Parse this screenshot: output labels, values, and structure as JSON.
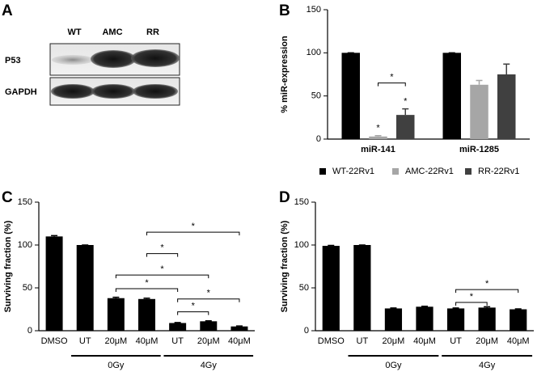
{
  "panel_a": {
    "label": "A",
    "lanes": [
      "WT",
      "AMC",
      "RR"
    ],
    "rows": [
      "P53",
      "GAPDH"
    ]
  },
  "chart_data": [
    {
      "type": "bar",
      "panel_label": "B",
      "ylabel": "% miR-expression",
      "categories": [
        "miR-141",
        "miR-1285"
      ],
      "series": [
        {
          "name": "WT-22Rv1",
          "color": "#000000",
          "values": [
            100,
            100
          ],
          "errors": [
            0,
            0
          ]
        },
        {
          "name": "AMC-22Rv1",
          "color": "#a6a6a6",
          "values": [
            3,
            63
          ],
          "errors": [
            1,
            5
          ],
          "significance": [
            "*",
            null
          ]
        },
        {
          "name": "RR-22Rv1",
          "color": "#404040",
          "values": [
            28,
            75
          ],
          "errors": [
            7,
            12
          ],
          "significance": [
            "*",
            null
          ]
        }
      ],
      "ylim": [
        0,
        150
      ],
      "yticks": [
        0,
        50,
        100,
        150
      ],
      "brackets": [
        {
          "category": 0,
          "from_series": 1,
          "to_series": 2,
          "level": 65,
          "label": "*"
        }
      ],
      "legend": "bottom"
    },
    {
      "type": "bar",
      "panel_label": "C",
      "ylabel": "Surviving fraction (%)",
      "categories": [
        "DMSO",
        "UT",
        "20μM",
        "40μM",
        "UT",
        "20μM",
        "40μM"
      ],
      "values": [
        110,
        100,
        38,
        37,
        9,
        11,
        5
      ],
      "errors": [
        1,
        0,
        1,
        1,
        0.5,
        0.5,
        0.5
      ],
      "color": "#000000",
      "ylim": [
        0,
        150
      ],
      "yticks": [
        0,
        50,
        100,
        150
      ],
      "groups": [
        {
          "label": "0Gy",
          "from": 1,
          "to": 3
        },
        {
          "label": "4Gy",
          "from": 4,
          "to": 6
        }
      ],
      "brackets": [
        {
          "from": 3,
          "to": 6,
          "level": 115,
          "label": "*"
        },
        {
          "from": 3,
          "to": 4,
          "level": 90,
          "label": "*"
        },
        {
          "from": 2,
          "to": 5,
          "level": 65,
          "label": "*"
        },
        {
          "from": 2,
          "to": 4,
          "level": 49,
          "label": "*"
        },
        {
          "from": 4,
          "to": 6,
          "level": 37,
          "label": "*"
        },
        {
          "from": 4,
          "to": 5,
          "level": 22,
          "label": "*"
        }
      ]
    },
    {
      "type": "bar",
      "panel_label": "D",
      "ylabel": "Surviving fraction (%)",
      "categories": [
        "DMSO",
        "UT",
        "20μM",
        "40μM",
        "UT",
        "20μM",
        "40μM"
      ],
      "values": [
        99,
        100,
        26,
        28,
        26,
        27,
        25
      ],
      "errors": [
        0.5,
        0,
        0.5,
        0.5,
        0.5,
        1,
        0.5
      ],
      "color": "#000000",
      "ylim": [
        0,
        150
      ],
      "yticks": [
        0,
        50,
        100,
        150
      ],
      "groups": [
        {
          "label": "0Gy",
          "from": 1,
          "to": 3
        },
        {
          "label": "4Gy",
          "from": 4,
          "to": 6
        }
      ],
      "brackets": [
        {
          "from": 4,
          "to": 5,
          "level": 33,
          "label": "*"
        },
        {
          "from": 4,
          "to": 6,
          "level": 48,
          "label": "*"
        }
      ]
    }
  ]
}
